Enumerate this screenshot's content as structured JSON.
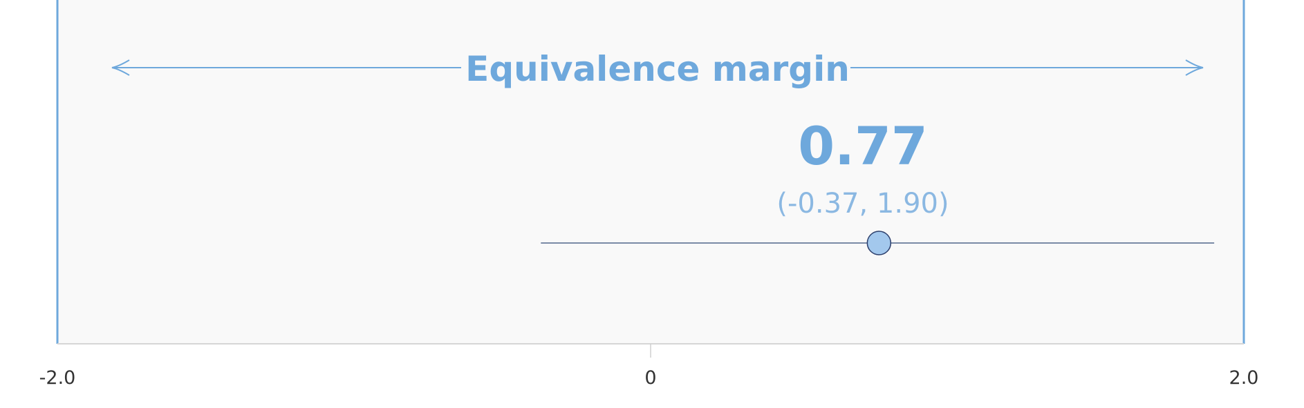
{
  "chart_data": {
    "type": "scatter",
    "title": "Equivalence margin",
    "xlim": [
      -2.0,
      2.0
    ],
    "x_ticks": [
      -2.0,
      0,
      2.0
    ],
    "x_tick_labels": [
      "-2.0",
      "0",
      "2.0"
    ],
    "equivalence_margin": [
      -2.0,
      2.0
    ],
    "estimate": 0.77,
    "ci": [
      -0.37,
      1.9
    ],
    "estimate_label": "0.77",
    "ci_label": "(-0.37, 1.90)",
    "grid": false,
    "colors": {
      "margin": "#6ea8dc",
      "region_fill": "#f9f9f9",
      "point_fill": "#a3c8ed",
      "point_stroke": "#2c3e6b",
      "ci_line": "#7a8aa6",
      "tick_text": "#333333"
    }
  }
}
